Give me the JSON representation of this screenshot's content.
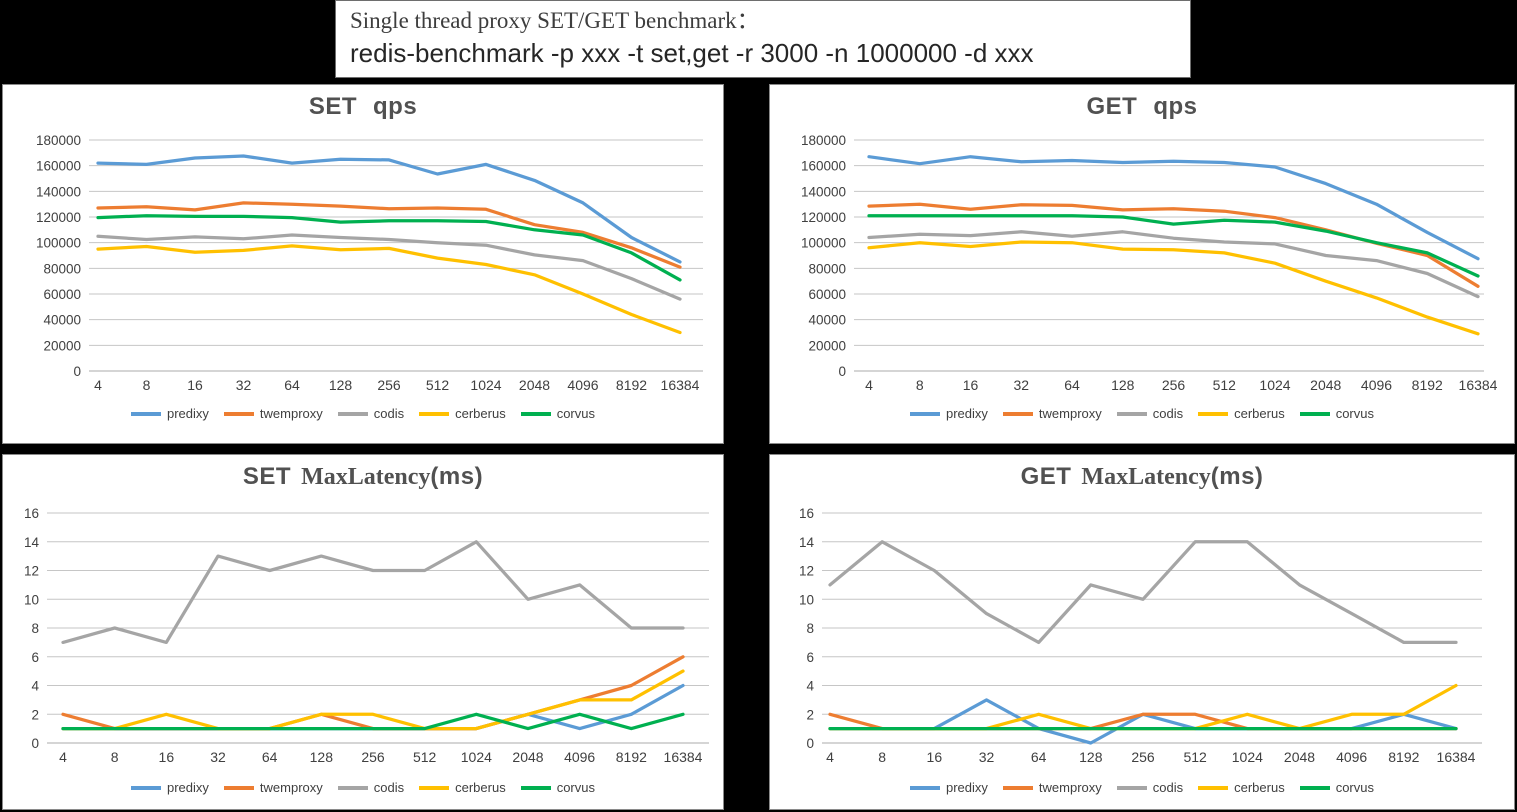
{
  "header": {
    "line1": "Single thread proxy SET/GET benchmark：",
    "line2": "redis-benchmark -p xxx -t set,get -r 3000 -n 1000000 -d xxx"
  },
  "palette": {
    "predixy": "#5B9BD5",
    "twemproxy": "#ED7D31",
    "codis": "#A5A5A5",
    "cerberus": "#FFC000",
    "corvus": "#00B050",
    "gridline": "#C6C6C6",
    "zero_line": "#ABABAB",
    "axis_text": "#404040",
    "title_text": "#515151"
  },
  "chart_data": [
    {
      "id": "set-qps",
      "type": "line",
      "title_bold": "SET",
      "title_serif": "",
      "title_bold2": "qps",
      "title_full": "SET  qps",
      "xlabel": "",
      "ylabel": "",
      "ylim": [
        0,
        180000
      ],
      "ytick_step": 20000,
      "grid": true,
      "legend_position": "bottom",
      "categories": [
        4,
        8,
        16,
        32,
        64,
        128,
        256,
        512,
        1024,
        2048,
        4096,
        8192,
        16384
      ],
      "series": [
        {
          "name": "predixy",
          "color": "#5B9BD5",
          "values": [
            162000,
            161000,
            166000,
            167500,
            162000,
            165000,
            164500,
            153500,
            161000,
            148500,
            131000,
            104000,
            85000
          ]
        },
        {
          "name": "twemproxy",
          "color": "#ED7D31",
          "values": [
            127000,
            128000,
            125500,
            131000,
            130000,
            128500,
            126500,
            127000,
            126000,
            114000,
            108000,
            96000,
            81000
          ]
        },
        {
          "name": "codis",
          "color": "#A5A5A5",
          "values": [
            105000,
            102500,
            104500,
            103000,
            106000,
            104000,
            102500,
            100000,
            98000,
            90500,
            86000,
            72000,
            56000
          ]
        },
        {
          "name": "cerberus",
          "color": "#FFC000",
          "values": [
            95000,
            97000,
            92500,
            94000,
            97500,
            94500,
            95500,
            88000,
            83000,
            75000,
            60000,
            44000,
            30000
          ]
        },
        {
          "name": "corvus",
          "color": "#00B050",
          "values": [
            119500,
            121000,
            120500,
            120500,
            119500,
            116000,
            117000,
            117000,
            116500,
            110000,
            106000,
            92000,
            71000
          ]
        }
      ]
    },
    {
      "id": "get-qps",
      "type": "line",
      "title_bold": "GET",
      "title_serif": "",
      "title_bold2": "qps",
      "title_full": "GET  qps",
      "xlabel": "",
      "ylabel": "",
      "ylim": [
        0,
        180000
      ],
      "ytick_step": 20000,
      "grid": true,
      "legend_position": "bottom",
      "categories": [
        4,
        8,
        16,
        32,
        64,
        128,
        256,
        512,
        1024,
        2048,
        4096,
        8192,
        16384
      ],
      "series": [
        {
          "name": "predixy",
          "color": "#5B9BD5",
          "values": [
            167000,
            161500,
            167000,
            163000,
            164000,
            162500,
            163500,
            162500,
            159000,
            146000,
            130000,
            108000,
            87500
          ]
        },
        {
          "name": "twemproxy",
          "color": "#ED7D31",
          "values": [
            128500,
            130000,
            126000,
            129500,
            129000,
            125500,
            126500,
            124500,
            119500,
            110000,
            99500,
            90000,
            66000
          ]
        },
        {
          "name": "codis",
          "color": "#A5A5A5",
          "values": [
            104000,
            106500,
            105500,
            108500,
            105000,
            108500,
            103500,
            100500,
            99000,
            90000,
            86000,
            76000,
            58000
          ]
        },
        {
          "name": "cerberus",
          "color": "#FFC000",
          "values": [
            96000,
            100000,
            97000,
            100500,
            100000,
            95000,
            94500,
            92000,
            84000,
            70000,
            57000,
            42000,
            29000
          ]
        },
        {
          "name": "corvus",
          "color": "#00B050",
          "values": [
            121000,
            121000,
            121000,
            121000,
            121000,
            120000,
            114500,
            117500,
            116000,
            109000,
            100000,
            92000,
            74000
          ]
        }
      ]
    },
    {
      "id": "set-maxlatency",
      "type": "line",
      "title_bold": "SET",
      "title_serif": "MaxLatency",
      "title_bold2": "(ms)",
      "title_full": "SET MaxLatency(ms)",
      "xlabel": "",
      "ylabel": "",
      "ylim": [
        0,
        16
      ],
      "ytick_step": 2,
      "grid": true,
      "legend_position": "bottom",
      "categories": [
        4,
        8,
        16,
        32,
        64,
        128,
        256,
        512,
        1024,
        2048,
        4096,
        8192,
        16384
      ],
      "series": [
        {
          "name": "predixy",
          "color": "#5B9BD5",
          "values": [
            1,
            1,
            1,
            1,
            1,
            1,
            1,
            1,
            1,
            2,
            1,
            2,
            4
          ]
        },
        {
          "name": "twemproxy",
          "color": "#ED7D31",
          "values": [
            2,
            1,
            1,
            1,
            1,
            2,
            1,
            1,
            1,
            2,
            3,
            4,
            6
          ]
        },
        {
          "name": "codis",
          "color": "#A5A5A5",
          "values": [
            7,
            8,
            7,
            13,
            12,
            13,
            12,
            12,
            14,
            10,
            11,
            8,
            8
          ]
        },
        {
          "name": "cerberus",
          "color": "#FFC000",
          "values": [
            1,
            1,
            2,
            1,
            1,
            2,
            2,
            1,
            1,
            2,
            3,
            3,
            5
          ]
        },
        {
          "name": "corvus",
          "color": "#00B050",
          "values": [
            1,
            1,
            1,
            1,
            1,
            1,
            1,
            1,
            2,
            1,
            2,
            1,
            2
          ]
        }
      ]
    },
    {
      "id": "get-maxlatency",
      "type": "line",
      "title_bold": "GET",
      "title_serif": "MaxLatency",
      "title_bold2": "(ms)",
      "title_full": "GET MaxLatency(ms)",
      "xlabel": "",
      "ylabel": "",
      "ylim": [
        0,
        16
      ],
      "ytick_step": 2,
      "grid": true,
      "legend_position": "bottom",
      "categories": [
        4,
        8,
        16,
        32,
        64,
        128,
        256,
        512,
        1024,
        2048,
        4096,
        8192,
        16384
      ],
      "series": [
        {
          "name": "predixy",
          "color": "#5B9BD5",
          "values": [
            1,
            1,
            1,
            3,
            1,
            0,
            2,
            1,
            1,
            1,
            1,
            2,
            1
          ]
        },
        {
          "name": "twemproxy",
          "color": "#ED7D31",
          "values": [
            2,
            1,
            1,
            1,
            1,
            1,
            2,
            2,
            1,
            1,
            1,
            1,
            1
          ]
        },
        {
          "name": "codis",
          "color": "#A5A5A5",
          "values": [
            11,
            14,
            12,
            9,
            7,
            11,
            10,
            14,
            14,
            11,
            9,
            7,
            7
          ]
        },
        {
          "name": "cerberus",
          "color": "#FFC000",
          "values": [
            1,
            1,
            1,
            1,
            2,
            1,
            1,
            1,
            2,
            1,
            2,
            2,
            4
          ]
        },
        {
          "name": "corvus",
          "color": "#00B050",
          "values": [
            1,
            1,
            1,
            1,
            1,
            1,
            1,
            1,
            1,
            1,
            1,
            1,
            1
          ]
        }
      ]
    }
  ]
}
